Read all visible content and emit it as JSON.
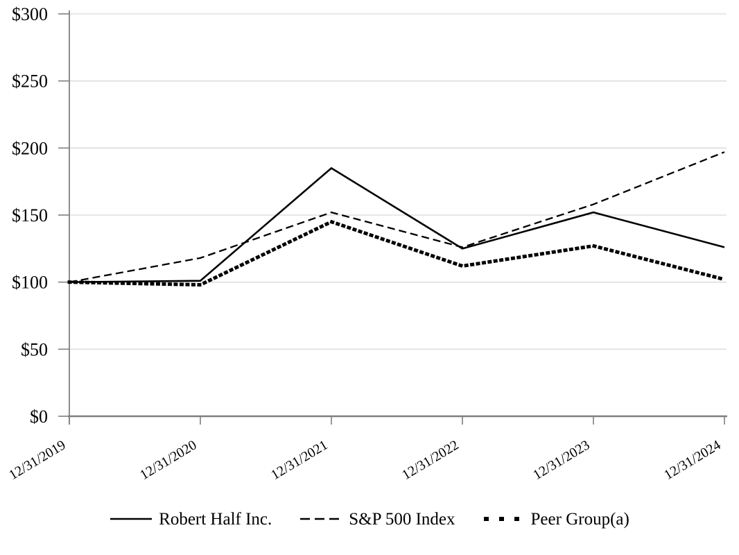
{
  "chart_data": {
    "type": "line",
    "title": "",
    "xlabel": "",
    "ylabel": "",
    "x_categories": [
      "12/31/2019",
      "12/31/2020",
      "12/31/2021",
      "12/31/2022",
      "12/31/2023",
      "12/31/2024"
    ],
    "y_ticks": [
      {
        "label": "$0",
        "value": 0
      },
      {
        "label": "$50",
        "value": 50
      },
      {
        "label": "$100",
        "value": 100
      },
      {
        "label": "$150",
        "value": 150
      },
      {
        "label": "$200",
        "value": 200
      },
      {
        "label": "$250",
        "value": 250
      },
      {
        "label": "$300",
        "value": 300
      }
    ],
    "ylim": [
      0,
      300
    ],
    "grid": "horizontal",
    "legend_position": "bottom",
    "series": [
      {
        "name": "Robert Half Inc.",
        "style": "solid",
        "values": [
          100,
          101,
          185,
          125,
          152,
          126
        ]
      },
      {
        "name": "S&P 500 Index",
        "style": "dashed",
        "values": [
          100,
          118,
          152,
          126,
          158,
          197
        ]
      },
      {
        "name": "Peer Group(a)",
        "style": "dotted",
        "values": [
          100,
          98,
          145,
          112,
          127,
          102
        ]
      }
    ],
    "colors": {
      "line": "#000000",
      "grid": "#d9d9d9",
      "axis": "#7f7f7f",
      "text": "#000000",
      "background": "#ffffff"
    }
  }
}
